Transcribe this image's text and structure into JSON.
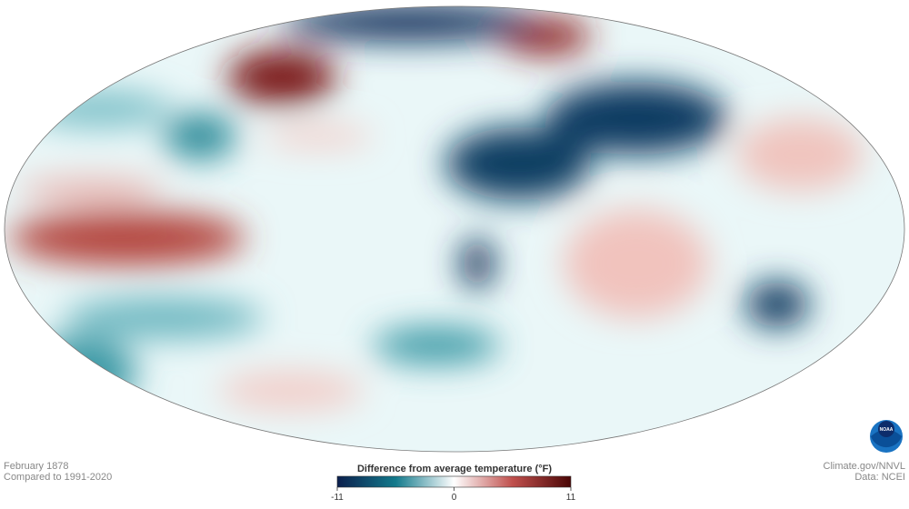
{
  "caption": {
    "date": "February 1878",
    "baseline": "Compared to 1991-2020"
  },
  "legend": {
    "title": "Difference from average temperature (°F)",
    "range": [
      -11,
      11
    ],
    "ticks": [
      -11,
      0,
      11
    ],
    "colors": [
      "#0b1f4d",
      "#137a8c",
      "#ffffff",
      "#c0504d",
      "#4a0606"
    ]
  },
  "credits": {
    "source": "Climate.gov/NNVL",
    "data": "Data: NCEI",
    "logo": "NOAA"
  }
}
